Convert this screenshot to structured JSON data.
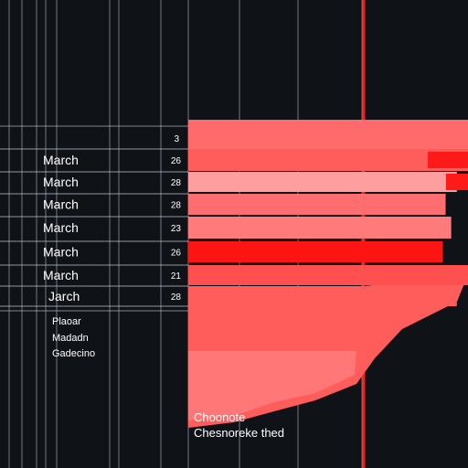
{
  "chart_data": {
    "type": "bar",
    "orientation": "horizontal",
    "top_value": "3",
    "rows": [
      {
        "label": "March",
        "value": "26",
        "fill": 1.0
      },
      {
        "label": "March",
        "value": "28",
        "fill": 0.96
      },
      {
        "label": "March",
        "value": "28",
        "fill": 0.92
      },
      {
        "label": "March",
        "value": "23",
        "fill": 0.94
      },
      {
        "label": "March",
        "value": "26",
        "fill": 0.91
      },
      {
        "label": "March",
        "value": "21",
        "fill": 1.0
      },
      {
        "label": "Jarch",
        "value": "28",
        "fill": 0.96
      }
    ],
    "legend": [
      "Plaoar",
      "Madadn",
      "Gadecino"
    ],
    "annotations": [
      "Choonote",
      "Chesnoreke thed"
    ],
    "grid": true
  },
  "colors": {
    "background": "#0f1318",
    "header_bar": "#ff6b6b",
    "accent": "#ff1a1a",
    "area": "#ff5c5c",
    "grid": "#c8d0d8",
    "row_fills": [
      "#ff5c5c",
      "#ff9e9e",
      "#ff6e6e",
      "#ff7a7a",
      "#ff1414",
      "#ff5050"
    ]
  }
}
